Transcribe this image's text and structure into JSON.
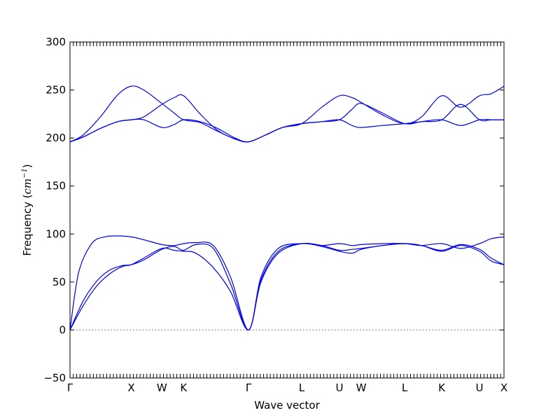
{
  "chart_data": {
    "type": "line",
    "xlabel": "Wave vector",
    "ylabel": "Frequency (",
    "ylabel_unit_base": "cm",
    "ylabel_unit_exp": "−1",
    "ylabel_close": ")",
    "ylim": [
      -50,
      300
    ],
    "yticks": [
      -50,
      0,
      50,
      100,
      150,
      200,
      250,
      300
    ],
    "xlim": [
      0,
      1
    ],
    "kpoints": [
      {
        "label": "Γ",
        "x": 0.0
      },
      {
        "label": "X",
        "x": 0.1412
      },
      {
        "label": "W",
        "x": 0.2117
      },
      {
        "label": "K",
        "x": 0.2617
      },
      {
        "label": "Γ",
        "x": 0.4113
      },
      {
        "label": "L",
        "x": 0.5339
      },
      {
        "label": "U",
        "x": 0.621
      },
      {
        "label": "W",
        "x": 0.671
      },
      {
        "label": "L",
        "x": 0.771
      },
      {
        "label": "K",
        "x": 0.8565
      },
      {
        "label": "U",
        "x": 0.9435
      },
      {
        "label": "X",
        "x": 1.0
      }
    ],
    "color": "#0000e6",
    "series": [
      {
        "x": [
          0,
          0.03,
          0.06,
          0.09,
          0.12,
          0.1412,
          0.17,
          0.2117,
          0.24,
          0.2617,
          0.29,
          0.33,
          0.37,
          0.4113,
          0.44,
          0.48,
          0.5339,
          0.58,
          0.621,
          0.65,
          0.671,
          0.72,
          0.771,
          0.81,
          0.8565,
          0.9,
          0.9435,
          0.97,
          1.0
        ],
        "y": [
          0,
          25,
          45,
          58,
          66,
          68,
          75,
          85,
          83,
          82,
          80,
          65,
          40,
          0,
          50,
          80,
          90,
          87,
          82,
          80,
          84,
          88,
          90,
          88,
          82,
          88,
          82,
          72,
          68
        ]
      },
      {
        "x": [
          0,
          0.03,
          0.06,
          0.09,
          0.12,
          0.1412,
          0.17,
          0.2117,
          0.24,
          0.2617,
          0.29,
          0.33,
          0.37,
          0.4113,
          0.44,
          0.48,
          0.5339,
          0.58,
          0.621,
          0.65,
          0.671,
          0.72,
          0.771,
          0.81,
          0.8565,
          0.9,
          0.9435,
          0.97,
          1.0
        ],
        "y": [
          0,
          30,
          50,
          62,
          67,
          68,
          73,
          84,
          87,
          83,
          89,
          85,
          48,
          0,
          52,
          82,
          90,
          88,
          83,
          84,
          85,
          88,
          90,
          88,
          83,
          89,
          84,
          75,
          68
        ]
      },
      {
        "x": [
          0,
          0.02,
          0.05,
          0.08,
          0.11,
          0.1412,
          0.17,
          0.2117,
          0.24,
          0.2617,
          0.29,
          0.33,
          0.37,
          0.4113,
          0.44,
          0.48,
          0.5339,
          0.58,
          0.621,
          0.65,
          0.671,
          0.72,
          0.771,
          0.81,
          0.8565,
          0.9,
          0.9435,
          0.97,
          1.0
        ],
        "y": [
          0,
          60,
          90,
          97,
          98,
          97,
          94,
          89,
          88,
          90,
          91,
          88,
          55,
          0,
          55,
          85,
          90,
          88,
          90,
          88,
          89,
          90,
          90,
          88,
          90,
          85,
          90,
          95,
          97
        ]
      },
      {
        "x": [
          0,
          0.03,
          0.07,
          0.11,
          0.1412,
          0.17,
          0.2117,
          0.24,
          0.2617,
          0.3,
          0.34,
          0.38,
          0.4113,
          0.45,
          0.49,
          0.5339,
          0.58,
          0.621,
          0.65,
          0.671,
          0.72,
          0.771,
          0.81,
          0.8565,
          0.9,
          0.9435,
          0.97,
          1.0
        ],
        "y": [
          196,
          201,
          210,
          217,
          219,
          219,
          211,
          214,
          219,
          217,
          210,
          200,
          196,
          203,
          211,
          215,
          217,
          219,
          213,
          211,
          213,
          215,
          217,
          219,
          213,
          219,
          219,
          219
        ]
      },
      {
        "x": [
          0,
          0.03,
          0.07,
          0.11,
          0.1412,
          0.17,
          0.2117,
          0.24,
          0.2617,
          0.3,
          0.34,
          0.38,
          0.4113,
          0.45,
          0.49,
          0.5339,
          0.58,
          0.621,
          0.65,
          0.671,
          0.72,
          0.771,
          0.81,
          0.8565,
          0.9,
          0.9435,
          0.97,
          1.0
        ],
        "y": [
          196,
          201,
          210,
          217,
          219,
          222,
          235,
          242,
          244,
          225,
          208,
          199,
          196,
          203,
          211,
          215,
          232,
          244,
          242,
          237,
          224,
          215,
          222,
          244,
          232,
          244,
          246,
          254
        ]
      },
      {
        "x": [
          0,
          0.03,
          0.07,
          0.11,
          0.1412,
          0.17,
          0.2117,
          0.24,
          0.2617,
          0.3,
          0.34,
          0.38,
          0.4113,
          0.45,
          0.49,
          0.5339,
          0.58,
          0.621,
          0.65,
          0.671,
          0.72,
          0.771,
          0.81,
          0.8565,
          0.9,
          0.9435,
          0.97,
          1.0
        ],
        "y": [
          196,
          203,
          222,
          245,
          254,
          250,
          236,
          226,
          219,
          216,
          207,
          199,
          196,
          203,
          211,
          215,
          217,
          219,
          230,
          236,
          226,
          215,
          217,
          219,
          235,
          219,
          219,
          219
        ]
      }
    ]
  }
}
